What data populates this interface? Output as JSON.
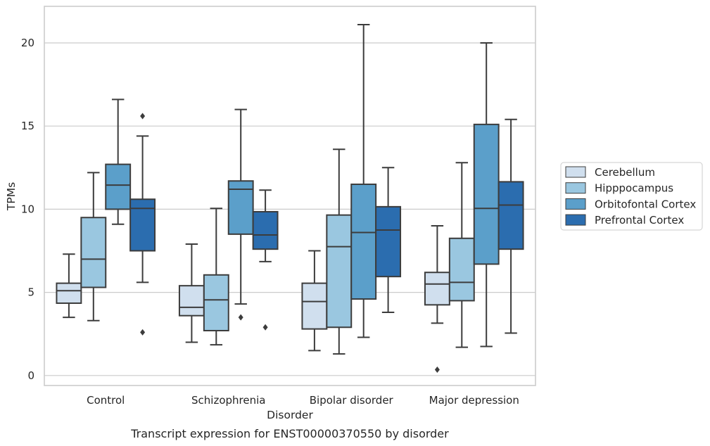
{
  "chart_data": {
    "type": "box",
    "title": "",
    "caption": "Transcript expression for ENST00000370550 by disorder",
    "xlabel": "Disorder",
    "ylabel": "TPMs",
    "ylim": [
      -0.6,
      22.2
    ],
    "yticks": [
      0,
      5,
      10,
      15,
      20
    ],
    "grid": "horizontal",
    "legend_position": "right",
    "categories": [
      "Control",
      "Schizophrenia",
      "Bipolar disorder",
      "Major depression"
    ],
    "series": [
      {
        "name": "Cerebellum",
        "color": "#d0dfee",
        "boxes": [
          {
            "whislo": 3.5,
            "q1": 4.35,
            "med": 5.1,
            "q3": 5.55,
            "whishi": 7.3,
            "fliers": []
          },
          {
            "whislo": 2.0,
            "q1": 3.6,
            "med": 4.1,
            "q3": 5.4,
            "whishi": 7.9,
            "fliers": []
          },
          {
            "whislo": 1.5,
            "q1": 2.8,
            "med": 4.45,
            "q3": 5.55,
            "whishi": 7.5,
            "fliers": []
          },
          {
            "whislo": 3.15,
            "q1": 4.25,
            "med": 5.5,
            "q3": 6.2,
            "whishi": 9.0,
            "fliers": [
              0.35
            ]
          }
        ]
      },
      {
        "name": "Hipppocampus",
        "color": "#9ac7e0",
        "boxes": [
          {
            "whislo": 3.3,
            "q1": 5.3,
            "med": 7.0,
            "q3": 9.5,
            "whishi": 12.2,
            "fliers": []
          },
          {
            "whislo": 1.85,
            "q1": 2.7,
            "med": 4.55,
            "q3": 6.05,
            "whishi": 10.05,
            "fliers": []
          },
          {
            "whislo": 1.3,
            "q1": 2.9,
            "med": 7.75,
            "q3": 9.65,
            "whishi": 13.6,
            "fliers": []
          },
          {
            "whislo": 1.7,
            "q1": 4.5,
            "med": 5.6,
            "q3": 8.25,
            "whishi": 12.8,
            "fliers": []
          }
        ]
      },
      {
        "name": "Orbitofontal Cortex",
        "color": "#5b9fca",
        "boxes": [
          {
            "whislo": 9.1,
            "q1": 10.0,
            "med": 11.45,
            "q3": 12.7,
            "whishi": 16.6,
            "fliers": []
          },
          {
            "whislo": 4.3,
            "q1": 8.5,
            "med": 11.2,
            "q3": 11.7,
            "whishi": 16.0,
            "fliers": [
              3.5
            ]
          },
          {
            "whislo": 2.3,
            "q1": 4.6,
            "med": 8.6,
            "q3": 11.5,
            "whishi": 21.1,
            "fliers": []
          },
          {
            "whislo": 1.75,
            "q1": 6.7,
            "med": 10.05,
            "q3": 15.1,
            "whishi": 20.0,
            "fliers": []
          }
        ]
      },
      {
        "name": "Prefrontal Cortex",
        "color": "#2b6daf",
        "boxes": [
          {
            "whislo": 5.6,
            "q1": 7.5,
            "med": 10.05,
            "q3": 10.6,
            "whishi": 14.4,
            "fliers": [
              15.6,
              2.6
            ]
          },
          {
            "whislo": 6.85,
            "q1": 7.6,
            "med": 8.45,
            "q3": 9.85,
            "whishi": 11.15,
            "fliers": [
              2.9
            ]
          },
          {
            "whislo": 3.8,
            "q1": 5.95,
            "med": 8.75,
            "q3": 10.15,
            "whishi": 12.5,
            "fliers": []
          },
          {
            "whislo": 2.55,
            "q1": 7.6,
            "med": 10.25,
            "q3": 11.65,
            "whishi": 15.4,
            "fliers": []
          }
        ]
      }
    ]
  }
}
